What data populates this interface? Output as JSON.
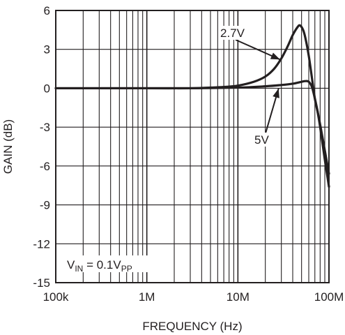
{
  "chart_data": {
    "type": "line",
    "title": "",
    "xlabel": "FREQUENCY (Hz)",
    "ylabel": "GAIN (dB)",
    "x_scale": "log",
    "xlim": [
      100000,
      100000000
    ],
    "ylim": [
      -15,
      6
    ],
    "grid": true,
    "x_tick_values": [
      100000,
      1000000,
      10000000,
      100000000
    ],
    "x_tick_labels": [
      "100k",
      "1M",
      "10M",
      "100M"
    ],
    "y_ticks": [
      6,
      3,
      0,
      -3,
      -6,
      -9,
      -12,
      -15
    ],
    "y_tick_labels": [
      "6",
      "3",
      "0",
      "-3",
      "-6",
      "-9",
      "-12",
      "-15"
    ],
    "series": [
      {
        "name": "2.7V",
        "x": [
          100000,
          300000,
          1000000,
          3000000,
          5000000,
          7000000,
          10000000,
          15000000,
          20000000,
          25000000,
          30000000,
          35000000,
          40000000,
          45000000,
          48000000,
          52000000,
          55000000,
          60000000,
          65000000,
          70000000,
          75000000,
          80000000,
          90000000,
          100000000
        ],
        "y": [
          0,
          0,
          0,
          0,
          0.05,
          0.1,
          0.2,
          0.5,
          0.9,
          1.5,
          2.3,
          3.2,
          4.1,
          4.7,
          4.85,
          4.5,
          3.9,
          2.5,
          0.8,
          -0.8,
          -1.8,
          -2.8,
          -4.8,
          -6.6
        ]
      },
      {
        "name": "5V",
        "x": [
          100000,
          300000,
          1000000,
          3000000,
          10000000,
          20000000,
          30000000,
          40000000,
          50000000,
          55000000,
          60000000,
          65000000,
          70000000,
          75000000,
          80000000,
          90000000,
          100000000
        ],
        "y": [
          0,
          0,
          0,
          0,
          0.05,
          0.15,
          0.25,
          0.35,
          0.5,
          0.55,
          0.5,
          0.1,
          -0.8,
          -1.8,
          -3.0,
          -5.5,
          -7.6
        ]
      }
    ],
    "annotations": {
      "label_27v": "2.7V",
      "label_5v": "5V",
      "vin_prefix": "V",
      "vin_sub": "IN",
      "vin_mid": " = 0.1V",
      "vin_sub2": "PP"
    }
  }
}
